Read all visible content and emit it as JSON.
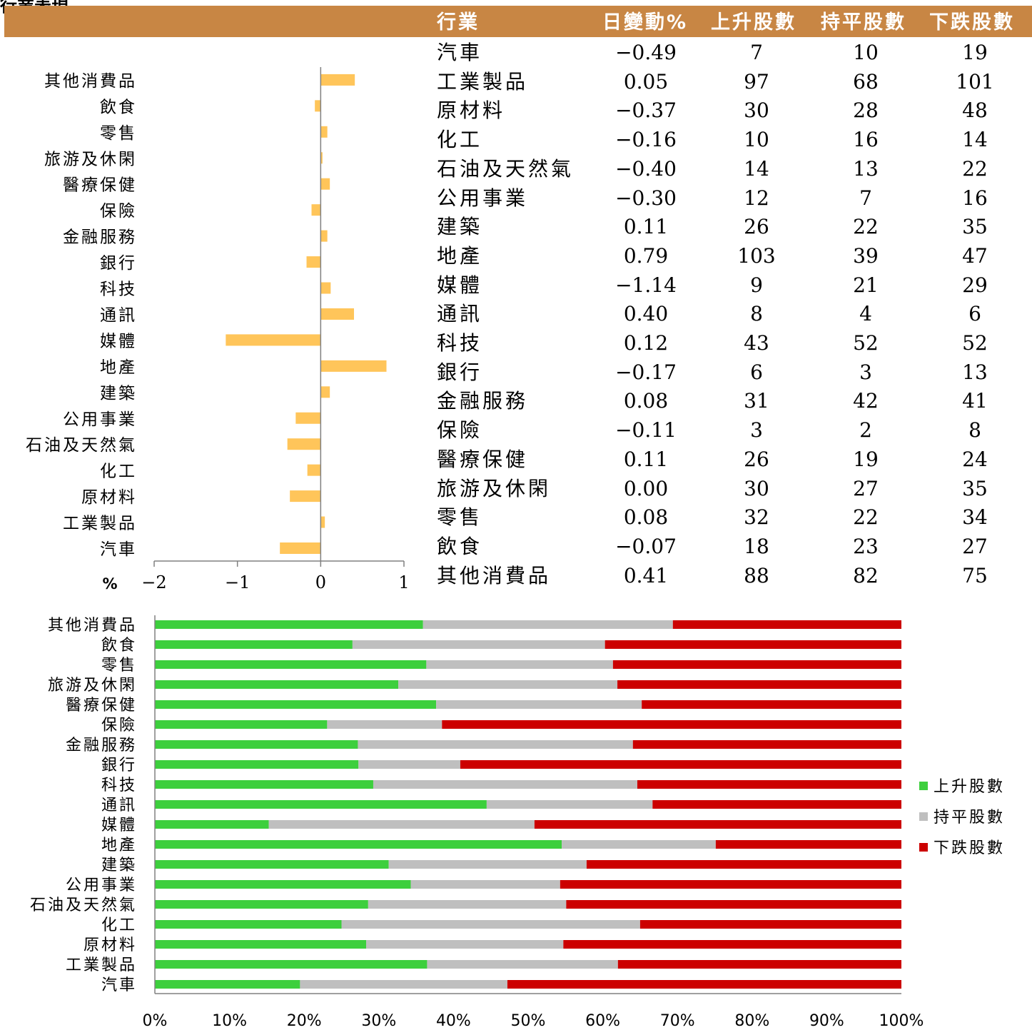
{
  "colors": {
    "header": "#c88644",
    "bar": "#ffc55a",
    "up": "#3dcf3d",
    "flat": "#bfbfbf",
    "down": "#cc0000"
  },
  "section_title": "行業表現",
  "table": {
    "columns": [
      "行業",
      "日變動%",
      "上升股數",
      "持平股數",
      "下跌股數"
    ],
    "rows": [
      {
        "name": "汽車",
        "change": "-0.49",
        "up": "7",
        "flat": "10",
        "down": "19"
      },
      {
        "name": "工業製品",
        "change": "0.05",
        "up": "97",
        "flat": "68",
        "down": "101"
      },
      {
        "name": "原材料",
        "change": "-0.37",
        "up": "30",
        "flat": "28",
        "down": "48"
      },
      {
        "name": "化工",
        "change": "-0.16",
        "up": "10",
        "flat": "16",
        "down": "14"
      },
      {
        "name": "石油及天然氣",
        "change": "-0.40",
        "up": "14",
        "flat": "13",
        "down": "22"
      },
      {
        "name": "公用事業",
        "change": "-0.30",
        "up": "12",
        "flat": "7",
        "down": "16"
      },
      {
        "name": "建築",
        "change": "0.11",
        "up": "26",
        "flat": "22",
        "down": "35"
      },
      {
        "name": "地產",
        "change": "0.79",
        "up": "103",
        "flat": "39",
        "down": "47"
      },
      {
        "name": "媒體",
        "change": "-1.14",
        "up": "9",
        "flat": "21",
        "down": "29"
      },
      {
        "name": "通訊",
        "change": "0.40",
        "up": "8",
        "flat": "4",
        "down": "6"
      },
      {
        "name": "科技",
        "change": "0.12",
        "up": "43",
        "flat": "52",
        "down": "52"
      },
      {
        "name": "銀行",
        "change": "-0.17",
        "up": "6",
        "flat": "3",
        "down": "13"
      },
      {
        "name": "金融服務",
        "change": "0.08",
        "up": "31",
        "flat": "42",
        "down": "41"
      },
      {
        "name": "保險",
        "change": "-0.11",
        "up": "3",
        "flat": "2",
        "down": "8"
      },
      {
        "name": "醫療保健",
        "change": "0.11",
        "up": "26",
        "flat": "19",
        "down": "24"
      },
      {
        "name": "旅游及休閑",
        "change": "0.00",
        "up": "30",
        "flat": "27",
        "down": "35"
      },
      {
        "name": "零售",
        "change": "0.08",
        "up": "32",
        "flat": "22",
        "down": "34"
      },
      {
        "name": "飲食",
        "change": "-0.07",
        "up": "18",
        "flat": "23",
        "down": "27"
      },
      {
        "name": "其他消費品",
        "change": "0.41",
        "up": "88",
        "flat": "82",
        "down": "75"
      }
    ]
  },
  "chart_data": [
    {
      "type": "bar",
      "orientation": "horizontal",
      "categories": [
        "汽車",
        "工業製品",
        "原材料",
        "化工",
        "石油及天然氣",
        "公用事業",
        "建築",
        "地產",
        "媒體",
        "通訊",
        "科技",
        "銀行",
        "金融服務",
        "保險",
        "醫療保健",
        "旅游及休閑",
        "零售",
        "飲食",
        "其他消費品"
      ],
      "values": [
        -0.49,
        0.05,
        -0.37,
        -0.16,
        -0.4,
        -0.3,
        0.11,
        0.79,
        -1.14,
        0.4,
        0.12,
        -0.17,
        0.08,
        -0.11,
        0.11,
        0.0,
        0.08,
        -0.07,
        0.41
      ],
      "xlim": [
        -2,
        1
      ],
      "xticks": [
        "-2",
        "-1",
        "0",
        "1"
      ],
      "xlabel": "%",
      "grid": false
    },
    {
      "type": "bar",
      "orientation": "horizontal",
      "stacked": "percent",
      "categories": [
        "汽車",
        "工業製品",
        "原材料",
        "化工",
        "石油及天然氣",
        "公用事業",
        "建築",
        "地產",
        "媒體",
        "通訊",
        "科技",
        "銀行",
        "金融服務",
        "保險",
        "醫療保健",
        "旅游及休閑",
        "零售",
        "飲食",
        "其他消費品"
      ],
      "series": [
        {
          "name": "上升股數",
          "values": [
            7,
            97,
            30,
            10,
            14,
            12,
            26,
            103,
            9,
            8,
            43,
            6,
            31,
            3,
            26,
            30,
            32,
            18,
            88
          ]
        },
        {
          "name": "持平股數",
          "values": [
            10,
            68,
            28,
            16,
            13,
            7,
            22,
            39,
            21,
            4,
            52,
            3,
            42,
            2,
            19,
            27,
            22,
            23,
            82
          ]
        },
        {
          "name": "下跌股數",
          "values": [
            19,
            101,
            48,
            14,
            22,
            16,
            35,
            47,
            29,
            6,
            52,
            13,
            41,
            8,
            24,
            35,
            34,
            27,
            75
          ]
        }
      ],
      "xticks": [
        "0%",
        "10%",
        "20%",
        "30%",
        "40%",
        "50%",
        "60%",
        "70%",
        "80%",
        "90%",
        "100%"
      ],
      "legend": "right",
      "grid": false
    }
  ]
}
